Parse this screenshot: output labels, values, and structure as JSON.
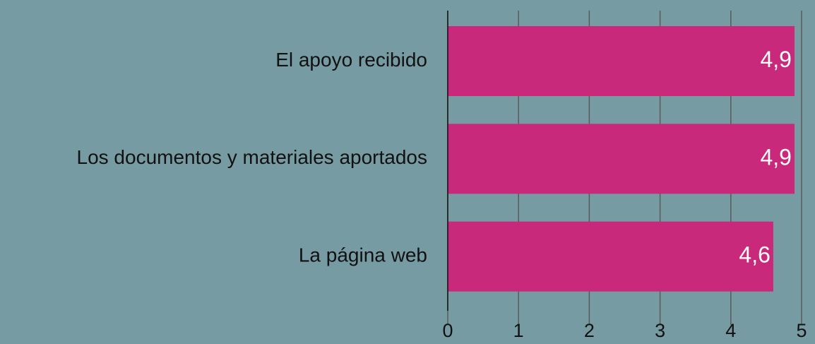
{
  "chart_data": {
    "type": "bar",
    "orientation": "horizontal",
    "categories": [
      "El apoyo recibido",
      "Los documentos y materiales aportados",
      "La página web"
    ],
    "values": [
      4.9,
      4.9,
      4.6
    ],
    "value_labels": [
      "4,9",
      "4,9",
      "4,6"
    ],
    "color": "#c8297a",
    "xlim": [
      0,
      5
    ],
    "xticks": [
      0,
      1,
      2,
      3,
      4,
      5
    ],
    "grid": true
  }
}
